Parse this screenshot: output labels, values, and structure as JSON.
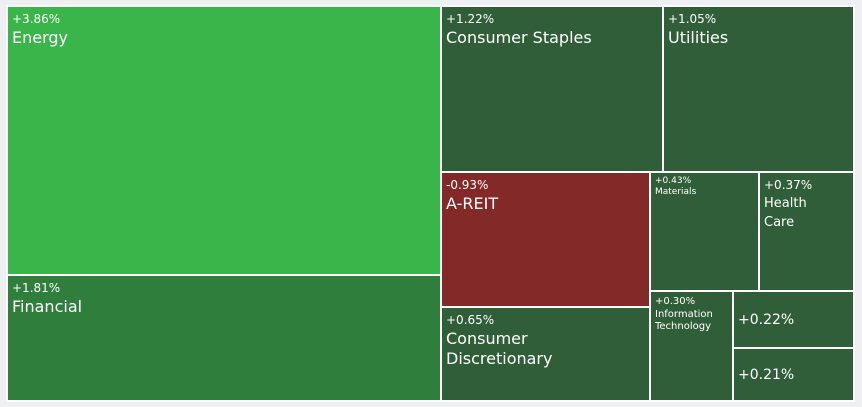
{
  "chart_data": {
    "type": "treemap",
    "title": "",
    "colors": {
      "strong_up": "#3ab54a",
      "mid_up": "#2f7e3c",
      "mild_up": "#305e38",
      "down": "#832a28",
      "border": "#ffffff",
      "background": "#eef0f1"
    },
    "sectors": [
      {
        "name": "Energy",
        "change": "+3.86%",
        "value": 3.86,
        "color": "strong_up"
      },
      {
        "name": "Financial",
        "change": "+1.81%",
        "value": 1.81,
        "color": "mid_up"
      },
      {
        "name": "Consumer Staples",
        "change": "+1.22%",
        "value": 1.22,
        "color": "mild_up"
      },
      {
        "name": "Utilities",
        "change": "+1.05%",
        "value": 1.05,
        "color": "mild_up"
      },
      {
        "name": "A-REIT",
        "change": "-0.93%",
        "value": -0.93,
        "color": "down"
      },
      {
        "name": "Consumer\nDiscretionary",
        "change": "+0.65%",
        "value": 0.65,
        "color": "mild_up"
      },
      {
        "name": "Materials",
        "change": "+0.43%",
        "value": 0.43,
        "color": "mild_up"
      },
      {
        "name": "Health\nCare",
        "change": "+0.37%",
        "value": 0.37,
        "color": "mild_up"
      },
      {
        "name": "Information\nTechnology",
        "change": "+0.30%",
        "value": 0.3,
        "color": "mild_up"
      },
      {
        "name": "",
        "change": "+0.22%",
        "value": 0.22,
        "color": "mild_up"
      },
      {
        "name": "",
        "change": "+0.21%",
        "value": 0.21,
        "color": "mild_up"
      }
    ]
  }
}
